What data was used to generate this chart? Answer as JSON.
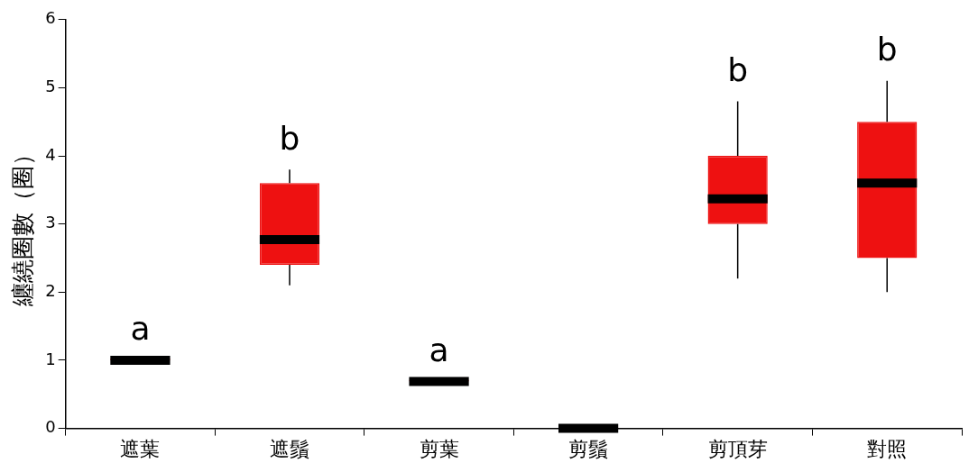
{
  "chart_data": {
    "type": "box",
    "ylabel": "纏繞圈數（圈）",
    "categories": [
      "遮葉",
      "遮鬚",
      "剪葉",
      "剪鬚",
      "剪頂芽",
      "對照"
    ],
    "color": "#ee1111",
    "boxes": [
      {
        "low": 1.0,
        "q1": 1.0,
        "median": 1.0,
        "q3": 1.0,
        "high": 1.0
      },
      {
        "low": 2.1,
        "q1": 2.4,
        "median": 2.77,
        "q3": 3.6,
        "high": 3.8
      },
      {
        "low": 0.69,
        "q1": 0.69,
        "median": 0.69,
        "q3": 0.69,
        "high": 0.69
      },
      {
        "low": 0,
        "q1": 0,
        "median": 0,
        "q3": 0,
        "high": 0
      },
      {
        "low": 2.2,
        "q1": 3.0,
        "median": 3.37,
        "q3": 4.0,
        "high": 4.8
      },
      {
        "low": 2.0,
        "q1": 2.5,
        "median": 3.6,
        "q3": 4.5,
        "high": 5.1
      }
    ],
    "ylim": [
      0,
      6
    ],
    "yticks": [
      0,
      1,
      2,
      3,
      4,
      5,
      6
    ],
    "grid": false,
    "legend": false,
    "value_labels": [
      "a",
      "b",
      "a",
      null,
      "b",
      "b"
    ]
  }
}
